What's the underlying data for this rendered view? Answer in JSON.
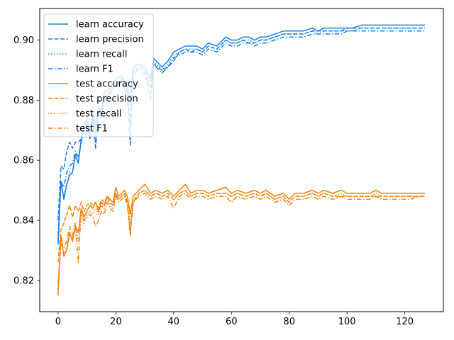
{
  "chart_data": {
    "type": "line",
    "title": "",
    "xlabel": "",
    "ylabel": "",
    "xlim": [
      -6.35,
      133.35
    ],
    "ylim": [
      0.8096,
      0.9105
    ],
    "x_ticks": [
      0,
      20,
      40,
      60,
      80,
      100,
      120
    ],
    "y_ticks": [
      0.82,
      0.84,
      0.86,
      0.88,
      0.9
    ],
    "y_tick_labels": [
      "0.82",
      "0.84",
      "0.86",
      "0.88",
      "0.90"
    ],
    "grid": false,
    "legend_position": "top-left",
    "colors": {
      "learn": "#1a80e6",
      "test": "#f5820d"
    },
    "series": [
      {
        "name": "learn accuracy",
        "color": "#1a80e6",
        "style": "solid",
        "x": [
          0,
          1,
          2,
          3,
          4,
          5,
          6,
          7,
          8,
          9,
          10,
          11,
          12,
          13,
          14,
          15,
          16,
          18,
          20,
          22,
          24,
          25,
          26,
          28,
          30,
          32,
          33,
          34,
          36,
          38,
          40,
          42,
          44,
          46,
          48,
          50,
          52,
          55,
          58,
          60,
          62,
          64,
          66,
          68,
          70,
          72,
          75,
          78,
          80,
          82,
          85,
          88,
          90,
          92,
          95,
          98,
          100,
          102,
          105,
          108,
          110,
          112,
          115,
          118,
          120,
          122,
          125,
          127
        ],
        "values": [
          0.832,
          0.853,
          0.847,
          0.852,
          0.855,
          0.856,
          0.862,
          0.859,
          0.867,
          0.872,
          0.874,
          0.869,
          0.876,
          0.87,
          0.878,
          0.876,
          0.883,
          0.884,
          0.887,
          0.888,
          0.884,
          0.88,
          0.891,
          0.892,
          0.891,
          0.887,
          0.894,
          0.893,
          0.891,
          0.893,
          0.896,
          0.897,
          0.898,
          0.898,
          0.898,
          0.897,
          0.899,
          0.898,
          0.901,
          0.9,
          0.9,
          0.901,
          0.901,
          0.9,
          0.901,
          0.901,
          0.902,
          0.903,
          0.903,
          0.903,
          0.903,
          0.904,
          0.903,
          0.904,
          0.904,
          0.904,
          0.904,
          0.904,
          0.905,
          0.905,
          0.905,
          0.905,
          0.905,
          0.905,
          0.905,
          0.905,
          0.905,
          0.905
        ]
      },
      {
        "name": "learn precision",
        "color": "#1a80e6",
        "style": "dashed",
        "x": [
          0,
          1,
          2,
          3,
          4,
          5,
          6,
          7,
          8,
          9,
          10,
          11,
          12,
          13,
          14,
          15,
          16,
          18,
          20,
          22,
          24,
          25,
          26,
          28,
          30,
          32,
          33,
          34,
          36,
          38,
          40,
          42,
          44,
          46,
          48,
          50,
          52,
          55,
          58,
          60,
          62,
          64,
          66,
          68,
          70,
          72,
          75,
          78,
          80,
          82,
          85,
          88,
          90,
          92,
          95,
          98,
          100,
          102,
          105,
          108,
          110,
          112,
          115,
          118,
          120,
          122,
          125,
          127
        ],
        "values": [
          0.84,
          0.858,
          0.857,
          0.863,
          0.866,
          0.864,
          0.866,
          0.866,
          0.867,
          0.871,
          0.872,
          0.867,
          0.873,
          0.866,
          0.876,
          0.874,
          0.88,
          0.883,
          0.885,
          0.887,
          0.882,
          0.871,
          0.889,
          0.891,
          0.89,
          0.88,
          0.893,
          0.891,
          0.89,
          0.891,
          0.893,
          0.896,
          0.897,
          0.896,
          0.897,
          0.896,
          0.898,
          0.897,
          0.9,
          0.899,
          0.899,
          0.9,
          0.899,
          0.899,
          0.9,
          0.9,
          0.901,
          0.902,
          0.902,
          0.902,
          0.902,
          0.903,
          0.903,
          0.903,
          0.903,
          0.903,
          0.904,
          0.904,
          0.904,
          0.904,
          0.904,
          0.904,
          0.904,
          0.904,
          0.904,
          0.904,
          0.904,
          0.904
        ]
      },
      {
        "name": "learn recall",
        "color": "#1a80e6",
        "style": "dotted",
        "x": [
          0,
          1,
          2,
          3,
          4,
          5,
          6,
          7,
          8,
          9,
          10,
          11,
          12,
          13,
          14,
          15,
          16,
          18,
          20,
          22,
          24,
          25,
          26,
          28,
          30,
          32,
          33,
          34,
          36,
          38,
          40,
          42,
          44,
          46,
          48,
          50,
          52,
          55,
          58,
          60,
          62,
          64,
          66,
          68,
          70,
          72,
          75,
          78,
          80,
          82,
          85,
          88,
          90,
          92,
          95,
          98,
          100,
          102,
          105,
          108,
          110,
          112,
          115,
          118,
          120,
          122,
          125,
          127
        ],
        "values": [
          0.833,
          0.852,
          0.848,
          0.852,
          0.856,
          0.856,
          0.861,
          0.859,
          0.866,
          0.871,
          0.873,
          0.868,
          0.875,
          0.869,
          0.877,
          0.875,
          0.882,
          0.883,
          0.886,
          0.887,
          0.883,
          0.878,
          0.89,
          0.891,
          0.89,
          0.886,
          0.893,
          0.892,
          0.89,
          0.892,
          0.895,
          0.896,
          0.897,
          0.897,
          0.897,
          0.896,
          0.898,
          0.897,
          0.9,
          0.899,
          0.899,
          0.9,
          0.9,
          0.899,
          0.9,
          0.9,
          0.901,
          0.902,
          0.902,
          0.902,
          0.902,
          0.903,
          0.902,
          0.903,
          0.903,
          0.903,
          0.903,
          0.903,
          0.904,
          0.904,
          0.904,
          0.904,
          0.904,
          0.904,
          0.904,
          0.904,
          0.904,
          0.904
        ]
      },
      {
        "name": "learn F1",
        "color": "#1a80e6",
        "style": "dashdot",
        "x": [
          0,
          1,
          2,
          3,
          4,
          5,
          6,
          7,
          8,
          9,
          10,
          11,
          12,
          13,
          14,
          15,
          16,
          18,
          20,
          22,
          24,
          25,
          26,
          28,
          30,
          32,
          33,
          34,
          36,
          38,
          40,
          42,
          44,
          46,
          48,
          50,
          52,
          55,
          58,
          60,
          62,
          64,
          66,
          68,
          70,
          72,
          75,
          78,
          80,
          82,
          85,
          88,
          90,
          92,
          95,
          98,
          100,
          102,
          105,
          108,
          110,
          112,
          115,
          118,
          120,
          122,
          125,
          127
        ],
        "values": [
          0.835,
          0.853,
          0.851,
          0.856,
          0.858,
          0.859,
          0.863,
          0.861,
          0.866,
          0.87,
          0.872,
          0.867,
          0.874,
          0.864,
          0.876,
          0.874,
          0.881,
          0.882,
          0.885,
          0.886,
          0.882,
          0.865,
          0.889,
          0.89,
          0.889,
          0.884,
          0.892,
          0.891,
          0.889,
          0.891,
          0.894,
          0.895,
          0.896,
          0.896,
          0.896,
          0.895,
          0.897,
          0.896,
          0.899,
          0.898,
          0.898,
          0.899,
          0.899,
          0.898,
          0.899,
          0.899,
          0.9,
          0.901,
          0.901,
          0.901,
          0.901,
          0.902,
          0.902,
          0.902,
          0.902,
          0.902,
          0.903,
          0.903,
          0.903,
          0.903,
          0.903,
          0.903,
          0.903,
          0.903,
          0.903,
          0.903,
          0.903,
          0.903
        ]
      },
      {
        "name": "test accuracy",
        "color": "#f5820d",
        "style": "solid",
        "x": [
          0,
          1,
          2,
          3,
          4,
          5,
          6,
          7,
          8,
          9,
          10,
          11,
          12,
          13,
          14,
          15,
          16,
          17,
          18,
          19,
          20,
          21,
          22,
          23,
          24,
          25,
          26,
          28,
          30,
          32,
          34,
          36,
          38,
          40,
          42,
          44,
          46,
          48,
          50,
          52,
          55,
          58,
          60,
          62,
          65,
          68,
          70,
          72,
          75,
          78,
          80,
          82,
          85,
          88,
          90,
          92,
          95,
          98,
          100,
          102,
          105,
          108,
          110,
          112,
          115,
          118,
          120,
          122,
          125,
          127
        ],
        "values": [
          0.815,
          0.835,
          0.828,
          0.83,
          0.836,
          0.833,
          0.838,
          0.836,
          0.844,
          0.841,
          0.843,
          0.845,
          0.844,
          0.846,
          0.843,
          0.846,
          0.845,
          0.848,
          0.847,
          0.846,
          0.851,
          0.848,
          0.849,
          0.85,
          0.848,
          0.842,
          0.848,
          0.85,
          0.852,
          0.849,
          0.85,
          0.849,
          0.85,
          0.848,
          0.85,
          0.852,
          0.849,
          0.85,
          0.85,
          0.849,
          0.85,
          0.851,
          0.849,
          0.85,
          0.849,
          0.85,
          0.849,
          0.85,
          0.848,
          0.849,
          0.847,
          0.849,
          0.849,
          0.85,
          0.849,
          0.85,
          0.849,
          0.85,
          0.849,
          0.849,
          0.849,
          0.849,
          0.85,
          0.849,
          0.849,
          0.849,
          0.849,
          0.849,
          0.849,
          0.849
        ]
      },
      {
        "name": "test precision",
        "color": "#f5820d",
        "style": "dashed",
        "x": [
          0,
          1,
          2,
          3,
          4,
          5,
          6,
          7,
          8,
          9,
          10,
          11,
          12,
          13,
          14,
          15,
          16,
          17,
          18,
          19,
          20,
          21,
          22,
          23,
          24,
          25,
          26,
          28,
          30,
          32,
          34,
          36,
          38,
          40,
          42,
          44,
          46,
          48,
          50,
          52,
          55,
          58,
          60,
          62,
          65,
          68,
          70,
          72,
          75,
          78,
          80,
          82,
          85,
          88,
          90,
          92,
          95,
          98,
          100,
          102,
          105,
          108,
          110,
          112,
          115,
          118,
          120,
          122,
          125,
          127
        ],
        "values": [
          0.826,
          0.837,
          0.839,
          0.842,
          0.845,
          0.841,
          0.845,
          0.843,
          0.846,
          0.843,
          0.845,
          0.846,
          0.845,
          0.846,
          0.844,
          0.847,
          0.846,
          0.848,
          0.846,
          0.845,
          0.849,
          0.847,
          0.848,
          0.849,
          0.846,
          0.836,
          0.846,
          0.849,
          0.85,
          0.848,
          0.849,
          0.848,
          0.849,
          0.847,
          0.849,
          0.85,
          0.848,
          0.849,
          0.849,
          0.848,
          0.849,
          0.849,
          0.848,
          0.849,
          0.848,
          0.849,
          0.848,
          0.849,
          0.847,
          0.848,
          0.846,
          0.848,
          0.848,
          0.849,
          0.848,
          0.849,
          0.848,
          0.848,
          0.848,
          0.848,
          0.848,
          0.848,
          0.848,
          0.848,
          0.848,
          0.848,
          0.848,
          0.848,
          0.848,
          0.848
        ]
      },
      {
        "name": "test recall",
        "color": "#f5820d",
        "style": "dotted",
        "x": [
          0,
          1,
          2,
          3,
          4,
          5,
          6,
          7,
          8,
          9,
          10,
          11,
          12,
          13,
          14,
          15,
          16,
          17,
          18,
          19,
          20,
          21,
          22,
          23,
          24,
          25,
          26,
          28,
          30,
          32,
          34,
          36,
          38,
          40,
          42,
          44,
          46,
          48,
          50,
          52,
          55,
          58,
          60,
          62,
          65,
          68,
          70,
          72,
          75,
          78,
          80,
          82,
          85,
          88,
          90,
          92,
          95,
          98,
          100,
          102,
          105,
          108,
          110,
          112,
          115,
          118,
          120,
          122,
          125,
          127
        ],
        "values": [
          0.817,
          0.834,
          0.829,
          0.831,
          0.836,
          0.834,
          0.838,
          0.833,
          0.842,
          0.839,
          0.842,
          0.843,
          0.842,
          0.844,
          0.842,
          0.845,
          0.844,
          0.847,
          0.845,
          0.844,
          0.849,
          0.847,
          0.848,
          0.849,
          0.846,
          0.839,
          0.847,
          0.849,
          0.85,
          0.848,
          0.849,
          0.848,
          0.849,
          0.847,
          0.849,
          0.85,
          0.848,
          0.849,
          0.849,
          0.848,
          0.849,
          0.849,
          0.848,
          0.849,
          0.848,
          0.849,
          0.848,
          0.849,
          0.847,
          0.848,
          0.846,
          0.848,
          0.848,
          0.849,
          0.848,
          0.849,
          0.848,
          0.849,
          0.848,
          0.848,
          0.848,
          0.848,
          0.849,
          0.848,
          0.848,
          0.848,
          0.848,
          0.848,
          0.848,
          0.848
        ]
      },
      {
        "name": "test F1",
        "color": "#f5820d",
        "style": "dashdot",
        "x": [
          0,
          1,
          2,
          3,
          4,
          5,
          6,
          7,
          8,
          9,
          10,
          11,
          12,
          13,
          14,
          15,
          16,
          17,
          18,
          19,
          20,
          21,
          22,
          23,
          24,
          25,
          26,
          28,
          30,
          32,
          34,
          36,
          38,
          40,
          42,
          44,
          46,
          48,
          50,
          52,
          55,
          58,
          60,
          62,
          65,
          68,
          70,
          72,
          75,
          78,
          80,
          82,
          85,
          88,
          90,
          92,
          95,
          98,
          100,
          102,
          105,
          108,
          110,
          112,
          115,
          118,
          120,
          122,
          125,
          127
        ],
        "values": [
          0.819,
          0.832,
          0.831,
          0.833,
          0.838,
          0.835,
          0.839,
          0.826,
          0.843,
          0.84,
          0.841,
          0.842,
          0.841,
          0.838,
          0.84,
          0.843,
          0.842,
          0.846,
          0.844,
          0.843,
          0.848,
          0.846,
          0.847,
          0.848,
          0.845,
          0.835,
          0.846,
          0.848,
          0.849,
          0.847,
          0.848,
          0.847,
          0.848,
          0.844,
          0.848,
          0.849,
          0.847,
          0.848,
          0.848,
          0.847,
          0.848,
          0.848,
          0.846,
          0.848,
          0.847,
          0.848,
          0.847,
          0.848,
          0.846,
          0.847,
          0.845,
          0.847,
          0.847,
          0.848,
          0.847,
          0.848,
          0.847,
          0.848,
          0.847,
          0.847,
          0.847,
          0.847,
          0.848,
          0.847,
          0.847,
          0.847,
          0.847,
          0.847,
          0.848,
          0.848
        ]
      }
    ]
  }
}
